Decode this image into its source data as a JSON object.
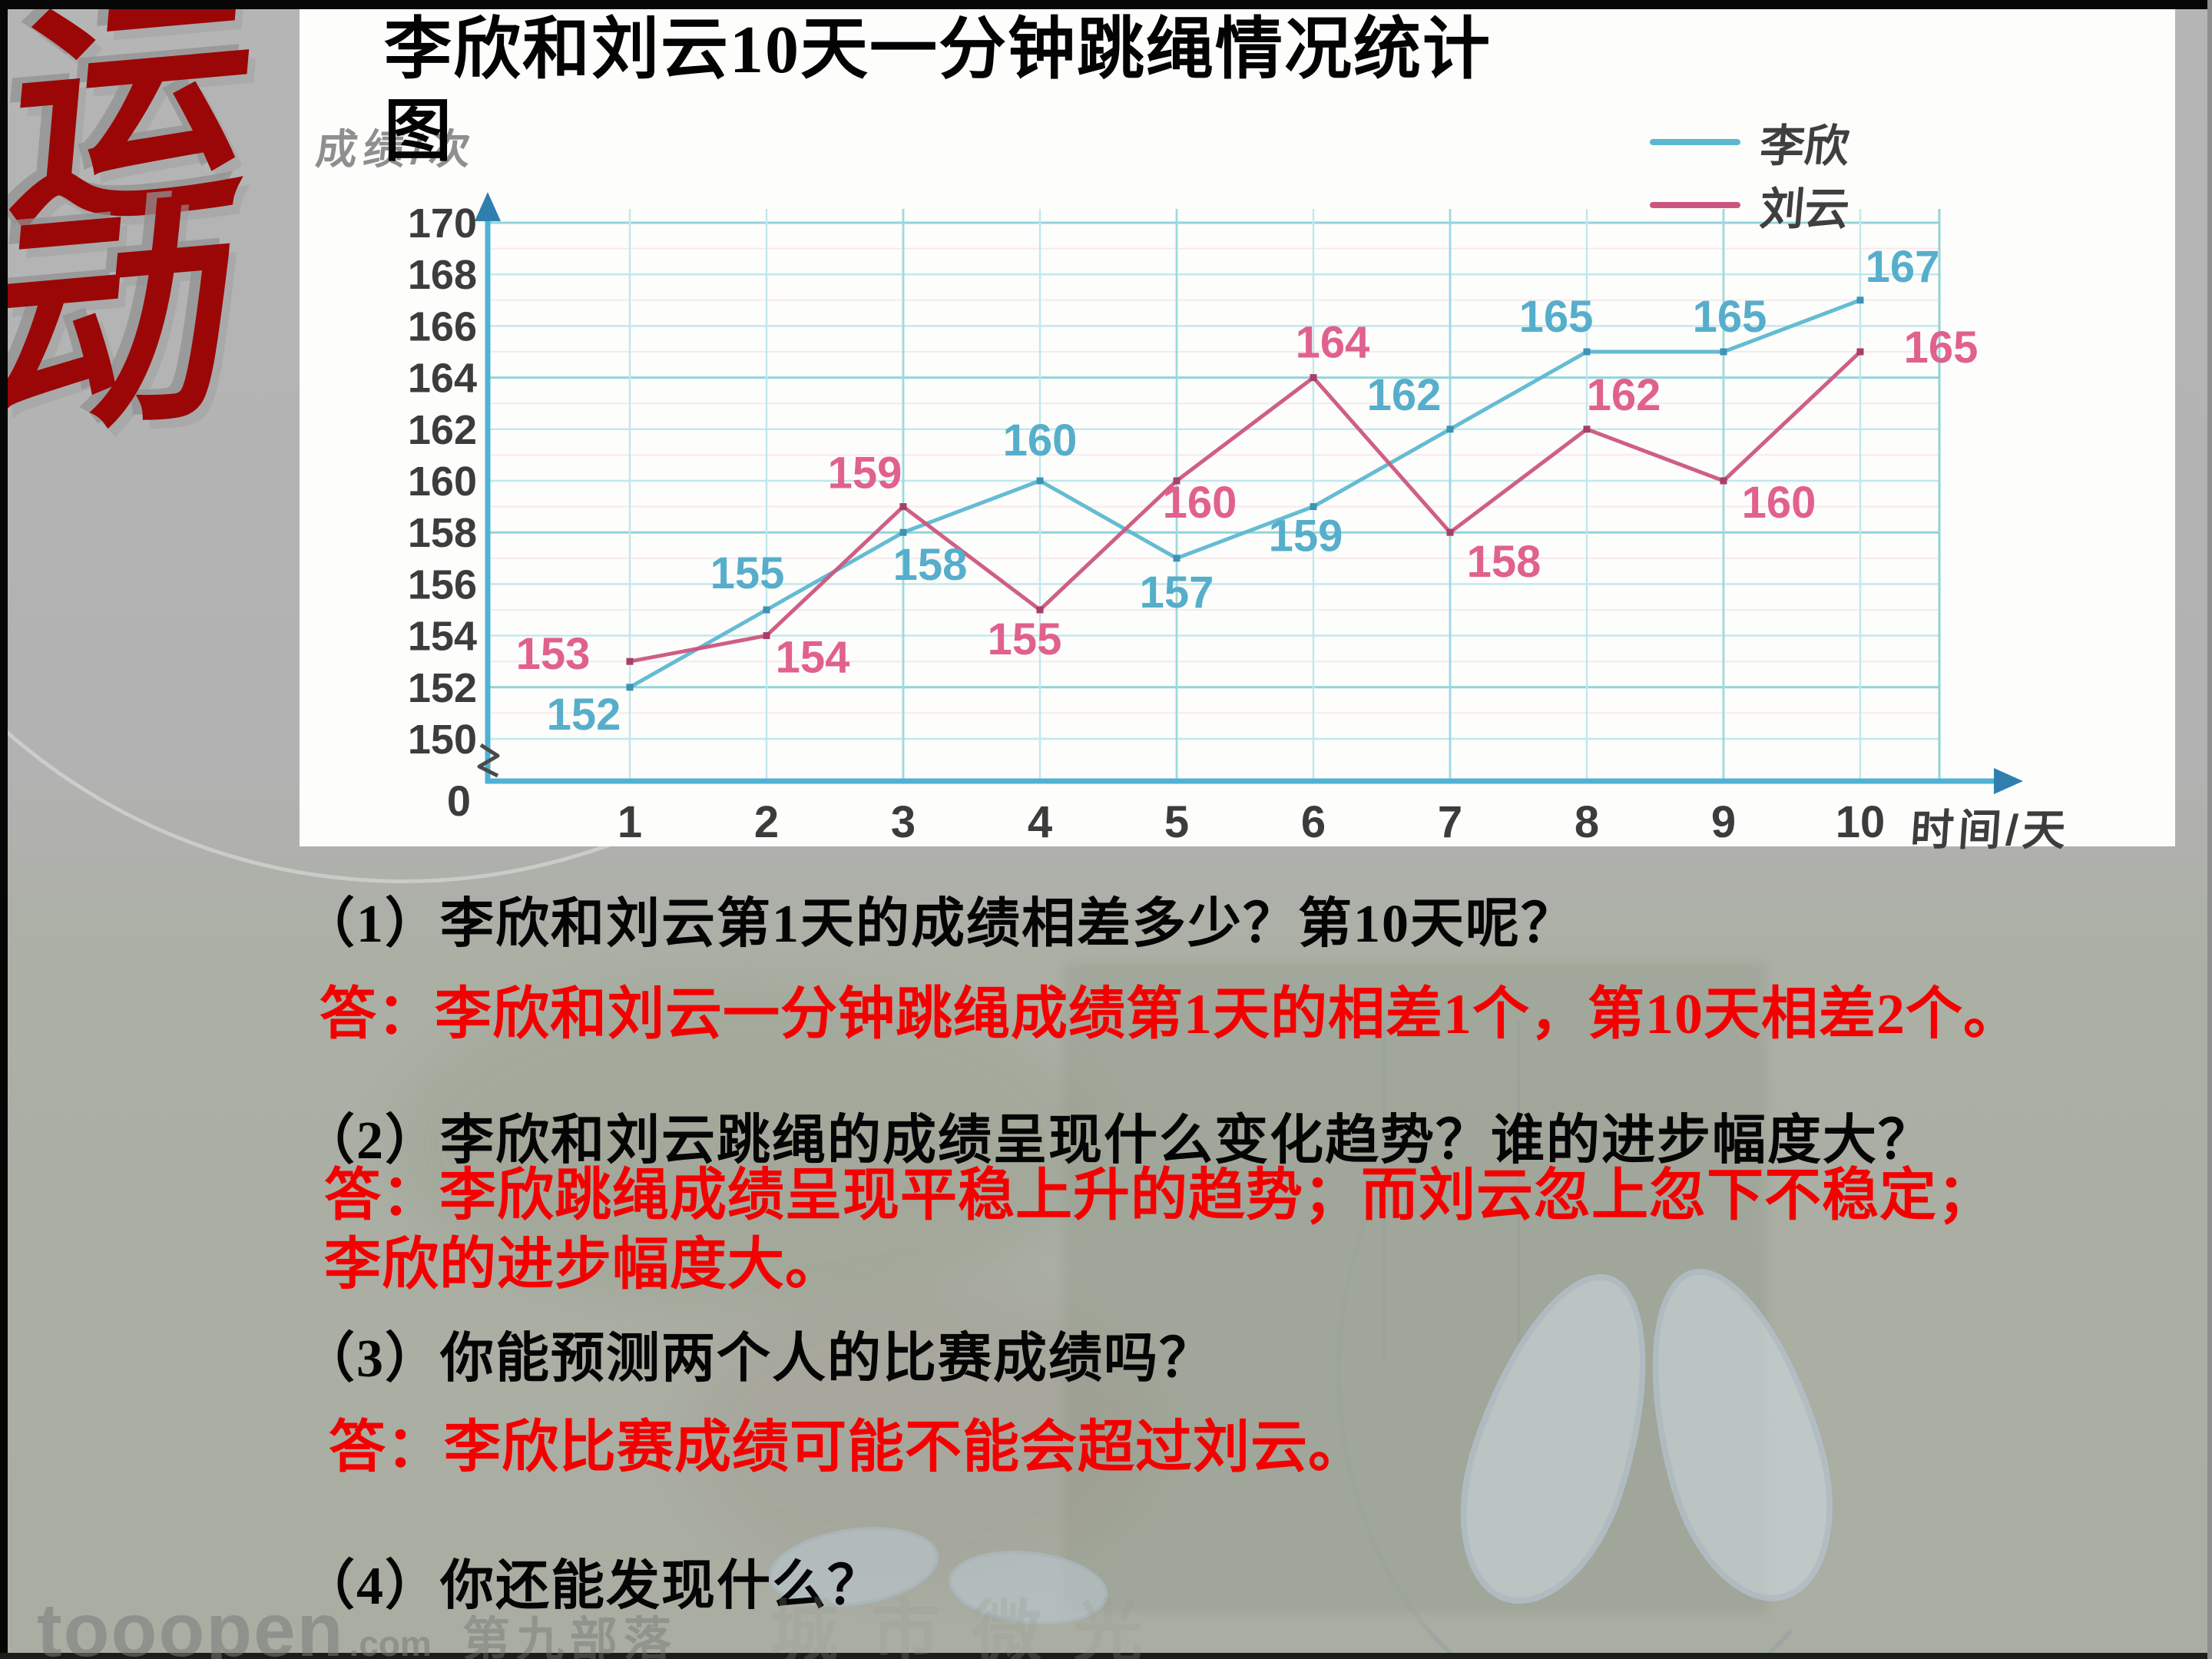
{
  "sidebar": {
    "chars": [
      "运",
      "动"
    ]
  },
  "panel": {
    "title_line1": "李欣和刘云10天一分钟跳绳情况统计",
    "title_line2": "图"
  },
  "chart_data": {
    "type": "line",
    "title": "李欣和刘云10天一分钟跳绳情况统计图",
    "x": [
      1,
      2,
      3,
      4,
      5,
      6,
      7,
      8,
      9,
      10
    ],
    "xlabel": "时间/天",
    "ylabel": "成绩/次",
    "ylim": [
      150,
      170
    ],
    "ytick_step": 2,
    "origin_label": "0",
    "grid": true,
    "axis_break": true,
    "legend_position": "top-right",
    "axis_color": "#4fb2d4",
    "series": [
      {
        "name": "李欣",
        "color": "#5cb8d1",
        "label_color": "#56aecb",
        "marker_color": "#3e93b4",
        "values": [
          152,
          155,
          158,
          160,
          157,
          159,
          162,
          165,
          165,
          167
        ]
      },
      {
        "name": "刘云",
        "color": "#cb5680",
        "label_color": "#e0618e",
        "marker_color": "#a93f66",
        "values": [
          153,
          154,
          159,
          155,
          160,
          164,
          158,
          162,
          160,
          165
        ]
      }
    ]
  },
  "questions": [
    {
      "q": "（1）李欣和刘云第1天的成绩相差多少？第10天呢？",
      "a_lines": [
        "答：李欣和刘云一分钟跳绳成绩第1天的相差1个，第10天相差2个。"
      ]
    },
    {
      "q": "（2）李欣和刘云跳绳的成绩呈现什么变化趋势？谁的进步幅度大？",
      "a_lines": [
        "答：李欣跳绳成绩呈现平稳上升的趋势；而刘云忽上忽下不稳定；",
        "李欣的进步幅度大。"
      ]
    },
    {
      "q": "（3）你能预测两个人的比赛成绩吗？",
      "a_lines": [
        "答：李欣比赛成绩可能不能会超过刘云。"
      ]
    },
    {
      "q": "（4）你还能发现什么？",
      "a_lines": []
    }
  ],
  "watermark": {
    "brand": "tooopen",
    "tld": ".com",
    "studio": "第九部落",
    "faint": "城市微光"
  }
}
